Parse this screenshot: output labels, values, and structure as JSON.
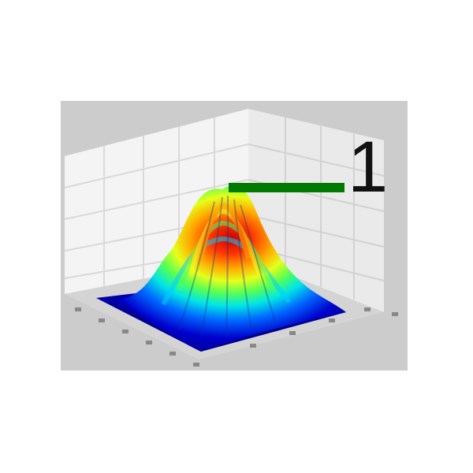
{
  "annotation": {
    "label": "1",
    "line_color": "#007a00"
  },
  "surface": {
    "colormap": "jet",
    "shape": "gaussian peak"
  },
  "colors": {
    "frame_background": "#cccccc",
    "page_background": "#ffffff",
    "wall_color": "#f2f2f2",
    "grid_color": "#d6d6d6"
  },
  "icon_name": "3d-surface-plot-icon"
}
